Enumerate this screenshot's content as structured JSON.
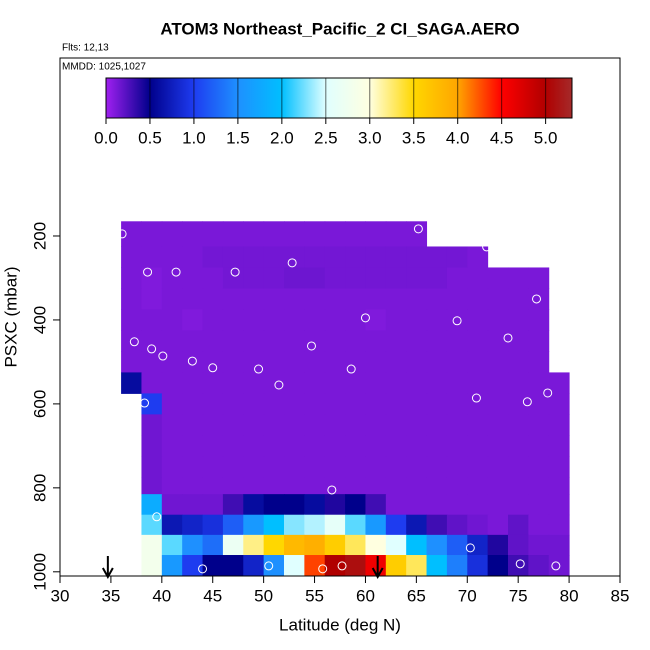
{
  "chart_data": {
    "type": "heatmap",
    "title": "ATOM3 Northeast_Pacific_2 CI_SAGA.AERO",
    "subtitle": "Flts: 12,13",
    "annotation": "MMDD: 1025,1027",
    "x_label": "Latitude (deg N)",
    "y_label": "PSXC (mbar)",
    "x_edges": [
      36,
      38,
      40,
      42,
      44,
      46,
      48,
      50,
      52,
      54,
      56,
      58,
      60,
      62,
      64,
      66,
      68,
      70,
      72,
      74,
      76,
      78,
      80
    ],
    "y_edges": [
      165,
      225,
      275,
      325,
      375,
      425,
      475,
      525,
      575,
      625,
      675,
      725,
      775,
      815,
      864,
      912,
      960,
      1010
    ],
    "z": [
      [
        0.12,
        0.12,
        0.12,
        0.12,
        0.12,
        0.12,
        0.12,
        0.12,
        0.12,
        0.12,
        0.12,
        0.12,
        0.12,
        0.12,
        0.12,
        null,
        null,
        null,
        null,
        null,
        null,
        null
      ],
      [
        0.12,
        0.12,
        0.12,
        0.12,
        0.14,
        0.14,
        0.14,
        0.14,
        0.14,
        0.14,
        0.14,
        0.14,
        0.14,
        0.14,
        0.14,
        0.14,
        0.14,
        0.12,
        null,
        null,
        null,
        null
      ],
      [
        0.12,
        0.1,
        0.12,
        0.12,
        0.12,
        0.14,
        0.14,
        0.14,
        0.16,
        0.16,
        0.14,
        0.14,
        0.14,
        0.14,
        0.14,
        0.14,
        0.12,
        0.12,
        0.12,
        0.12,
        0.12,
        null
      ],
      [
        0.12,
        0.1,
        0.12,
        0.12,
        0.12,
        0.12,
        0.12,
        0.12,
        0.12,
        0.12,
        0.12,
        0.12,
        0.12,
        0.12,
        0.12,
        0.12,
        0.12,
        0.12,
        0.12,
        0.12,
        0.12,
        null
      ],
      [
        0.12,
        0.12,
        0.12,
        0.1,
        0.12,
        0.12,
        0.12,
        0.12,
        0.12,
        0.12,
        0.12,
        0.12,
        0.1,
        0.12,
        0.12,
        0.12,
        0.12,
        0.12,
        0.12,
        0.12,
        0.12,
        null
      ],
      [
        0.12,
        0.12,
        0.12,
        0.12,
        0.12,
        0.12,
        0.12,
        0.12,
        0.12,
        0.12,
        0.12,
        0.12,
        0.12,
        0.12,
        0.12,
        0.12,
        0.12,
        0.12,
        0.12,
        0.12,
        0.12,
        null
      ],
      [
        0.12,
        0.12,
        0.12,
        0.12,
        0.12,
        0.12,
        0.12,
        0.12,
        0.12,
        0.12,
        0.12,
        0.12,
        0.12,
        0.12,
        0.12,
        0.12,
        0.12,
        0.12,
        0.12,
        0.12,
        0.12,
        null
      ],
      [
        0.6,
        0.12,
        0.12,
        0.12,
        0.12,
        0.12,
        0.12,
        0.12,
        0.12,
        0.12,
        0.12,
        0.12,
        0.12,
        0.12,
        0.12,
        0.12,
        0.12,
        0.12,
        0.12,
        0.12,
        0.12,
        0.12
      ],
      [
        null,
        1.0,
        0.12,
        0.12,
        0.12,
        0.12,
        0.12,
        0.12,
        0.12,
        0.12,
        0.12,
        0.12,
        0.12,
        0.12,
        0.12,
        0.12,
        0.12,
        0.12,
        0.12,
        0.12,
        0.12,
        0.12
      ],
      [
        null,
        0.15,
        0.12,
        0.12,
        0.12,
        0.12,
        0.12,
        0.12,
        0.12,
        0.12,
        0.12,
        0.12,
        0.12,
        0.12,
        0.12,
        0.12,
        0.12,
        0.12,
        0.12,
        0.12,
        0.12,
        0.12
      ],
      [
        null,
        0.15,
        0.12,
        0.12,
        0.12,
        0.12,
        0.12,
        0.12,
        0.12,
        0.12,
        0.12,
        0.12,
        0.12,
        0.12,
        0.12,
        0.12,
        0.12,
        0.12,
        0.12,
        0.12,
        0.12,
        0.12
      ],
      [
        null,
        0.15,
        0.12,
        0.12,
        0.12,
        0.12,
        0.12,
        0.12,
        0.12,
        0.12,
        0.12,
        0.12,
        0.12,
        0.12,
        0.12,
        0.12,
        0.12,
        0.12,
        0.12,
        0.12,
        0.12,
        0.12
      ],
      [
        null,
        0.15,
        0.12,
        0.12,
        0.12,
        0.12,
        0.12,
        0.12,
        0.12,
        0.12,
        0.12,
        0.12,
        0.12,
        0.12,
        0.12,
        0.12,
        0.12,
        0.12,
        0.12,
        0.12,
        0.12,
        0.12
      ],
      [
        null,
        1.8,
        0.15,
        0.15,
        0.15,
        0.3,
        0.6,
        0.5,
        0.5,
        0.6,
        0.4,
        0.5,
        0.3,
        0.12,
        0.12,
        0.12,
        0.12,
        0.12,
        0.12,
        0.12,
        0.12,
        0.12
      ],
      [
        null,
        2.2,
        0.7,
        0.8,
        0.9,
        1.2,
        1.6,
        2.0,
        2.3,
        2.4,
        2.6,
        2.2,
        1.6,
        1.0,
        0.7,
        0.3,
        0.2,
        0.15,
        0.12,
        0.2,
        0.12,
        0.12
      ],
      [
        null,
        2.8,
        2.2,
        1.5,
        1.3,
        2.7,
        3.2,
        3.5,
        3.8,
        3.9,
        3.6,
        3.3,
        3.0,
        2.5,
        2.0,
        1.5,
        1.2,
        0.8,
        0.4,
        0.2,
        0.15,
        0.15
      ],
      [
        null,
        2.8,
        1.6,
        1.0,
        0.5,
        0.5,
        0.8,
        1.5,
        2.5,
        4.3,
        5.0,
        5.1,
        4.6,
        3.6,
        3.3,
        2.0,
        1.4,
        0.9,
        0.5,
        0.3,
        0.2,
        0.15
      ]
    ],
    "xlim": [
      30,
      85
    ],
    "xticks": [
      30,
      35,
      40,
      45,
      50,
      55,
      60,
      65,
      70,
      75,
      80,
      85
    ],
    "ylim": [
      1010,
      -224
    ],
    "yticks": [
      200,
      400,
      600,
      800,
      1000
    ],
    "colorscale": [
      [
        0,
        "#a020f0"
      ],
      [
        0.5,
        "#00008b"
      ],
      [
        1.0,
        "#1e3cf0"
      ],
      [
        1.5,
        "#1e90ff"
      ],
      [
        2.0,
        "#00bfff"
      ],
      [
        2.5,
        "#e0ffff"
      ],
      [
        3.0,
        "#ffffe0"
      ],
      [
        3.5,
        "#ffd700"
      ],
      [
        4.0,
        "#ffa500"
      ],
      [
        4.5,
        "#ff0000"
      ],
      [
        5.0,
        "#b00000"
      ],
      [
        5.3,
        "#a52a2a"
      ]
    ],
    "colorbar": {
      "lim": [
        0,
        5.3
      ],
      "ticks": [
        {
          "value": 0,
          "label": "0.0"
        },
        {
          "value": 0.5,
          "label": "0.5"
        },
        {
          "value": 1,
          "label": "1.0"
        },
        {
          "value": 1.5,
          "label": "1.5"
        },
        {
          "value": 2,
          "label": "2.0"
        },
        {
          "value": 2.5,
          "label": "2.5"
        },
        {
          "value": 3,
          "label": "3.0"
        },
        {
          "value": 3.5,
          "label": "3.5"
        },
        {
          "value": 4,
          "label": "4.0"
        },
        {
          "value": 4.5,
          "label": "4.5"
        },
        {
          "value": 5,
          "label": "5.0"
        }
      ]
    },
    "points": {
      "color": "#ffffff",
      "x": [
        36.1,
        65.2,
        71.9,
        38.6,
        41.4,
        47.2,
        52.8,
        76.8,
        60.0,
        69.0,
        37.3,
        39.0,
        40.1,
        43.0,
        45.0,
        49.5,
        58.6,
        54.7,
        74.0,
        51.5,
        77.9,
        75.9,
        70.9,
        38.3,
        56.7,
        39.5,
        70.3,
        75.2,
        44.0,
        50.5,
        55.8,
        57.7,
        78.7
      ],
      "y": [
        195,
        183,
        226,
        286,
        286,
        286,
        264,
        350,
        395,
        402,
        452,
        469,
        486,
        498,
        514,
        517,
        517,
        462,
        443,
        555,
        574,
        595,
        586,
        598,
        805,
        869,
        943,
        981,
        993,
        986,
        993,
        986,
        986
      ]
    },
    "arrows": [
      34.7,
      61.2
    ]
  }
}
